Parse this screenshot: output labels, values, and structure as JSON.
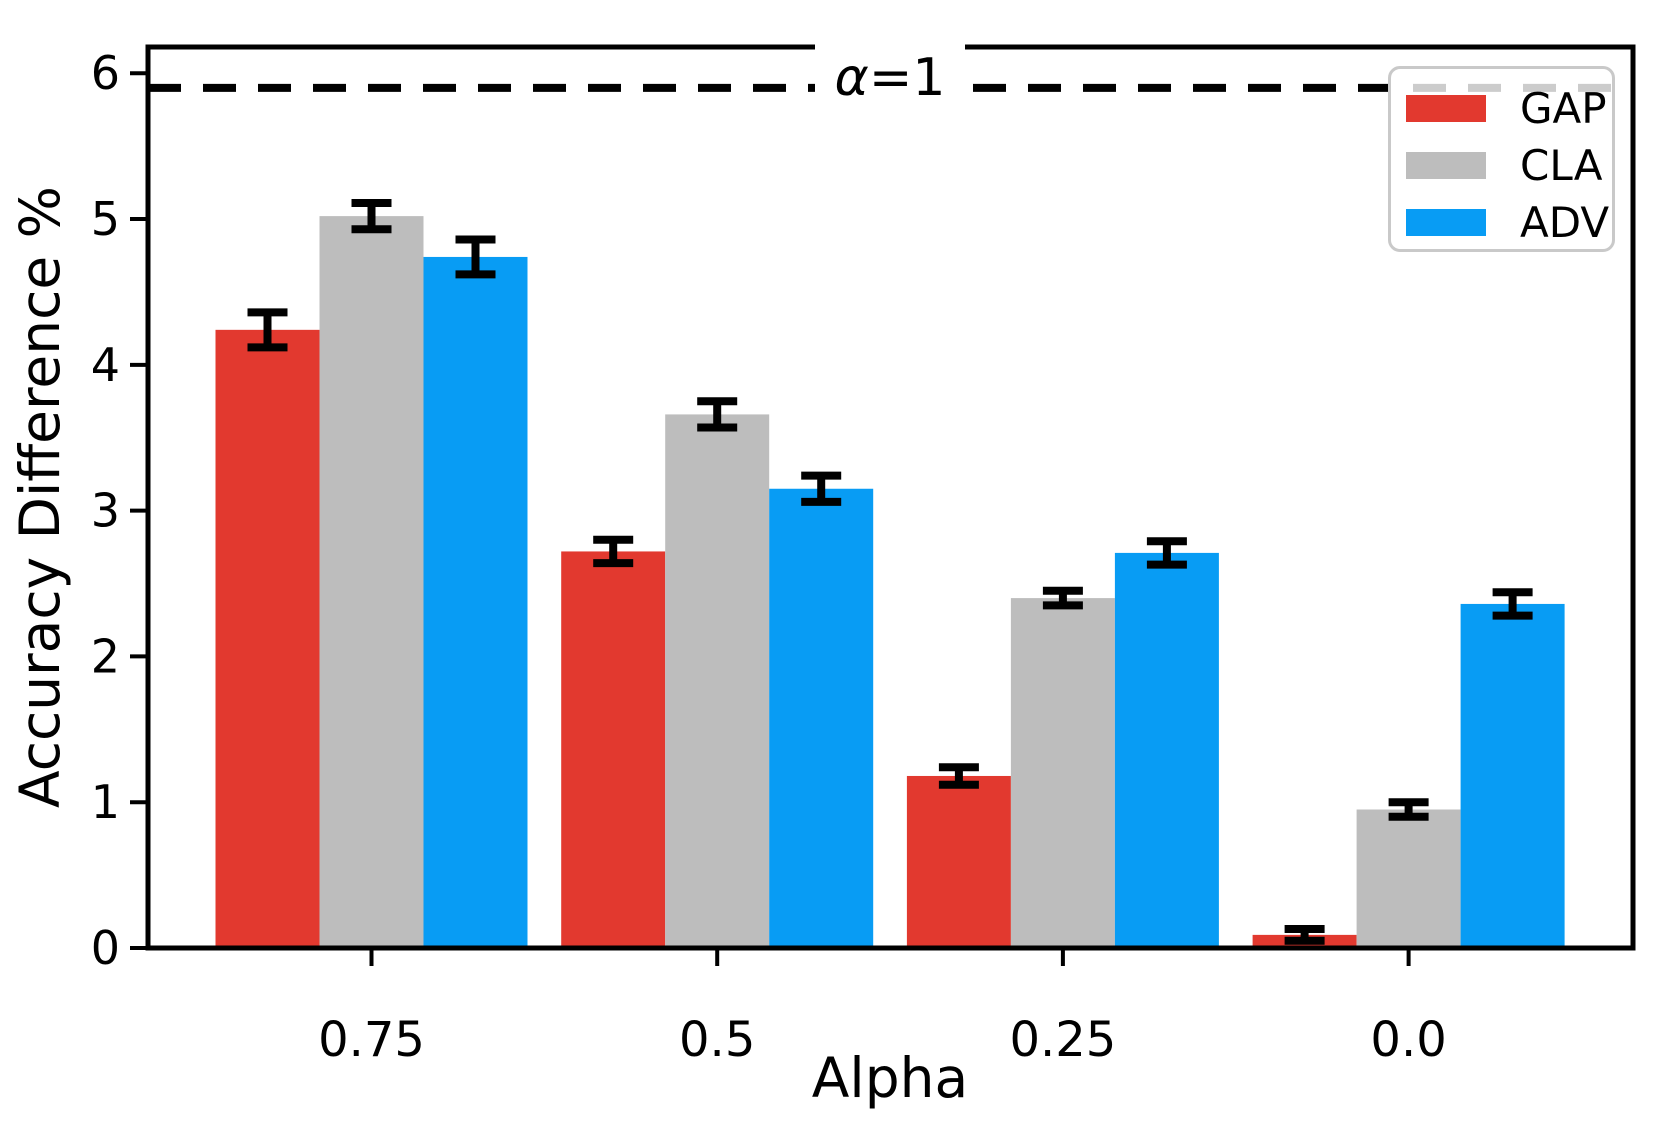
{
  "chart_data": {
    "type": "bar",
    "title": "",
    "xlabel": "Alpha",
    "ylabel": "Accuracy Difference %",
    "categories": [
      "0.75",
      "0.5",
      "0.25",
      "0.0"
    ],
    "series": [
      {
        "name": "GAP",
        "color": "#e2392f",
        "values": [
          4.24,
          2.72,
          1.18,
          0.09
        ],
        "errors": [
          0.12,
          0.08,
          0.06,
          0.04
        ]
      },
      {
        "name": "CLA",
        "color": "#bdbdbd",
        "values": [
          5.02,
          3.66,
          2.4,
          0.95
        ],
        "errors": [
          0.09,
          0.09,
          0.05,
          0.05
        ]
      },
      {
        "name": "ADV",
        "color": "#089cf4",
        "values": [
          4.74,
          3.15,
          2.71,
          2.36
        ],
        "errors": [
          0.12,
          0.09,
          0.08,
          0.08
        ]
      }
    ],
    "yticks": [
      0,
      1,
      2,
      3,
      4,
      5,
      6
    ],
    "ylim": [
      0,
      6.18
    ],
    "grid": false,
    "legend_position": "upper right",
    "errorbar_color": "#000000",
    "reference_line": {
      "value": 5.9,
      "label": "α=1",
      "style": "dashed",
      "color": "#000000"
    }
  }
}
